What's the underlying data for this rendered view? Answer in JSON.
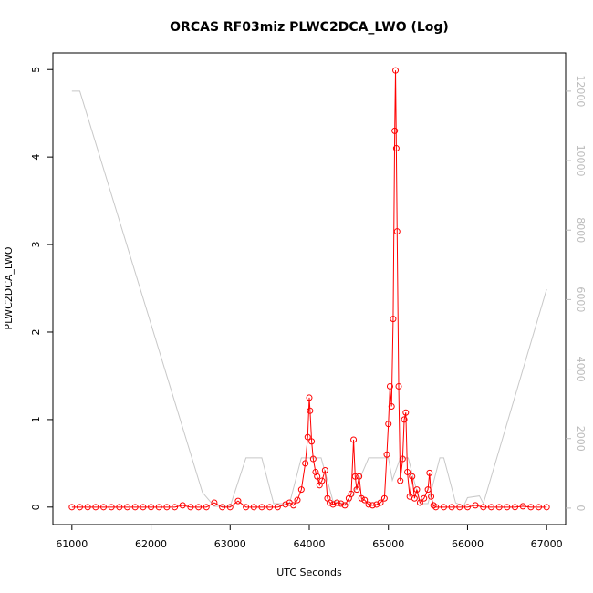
{
  "chart_data": {
    "type": "line",
    "title": "ORCAS RF03miz PLWC2DCA_LWO (Log)",
    "x_label": "UTC Seconds",
    "y_label": "PLWC2DCA_LWO",
    "xlim": [
      60760,
      67240
    ],
    "xticks": [
      61000,
      62000,
      63000,
      64000,
      65000,
      66000,
      67000
    ],
    "ylim": [
      -0.2,
      5.19
    ],
    "yticks": [
      0,
      1,
      2,
      3,
      4,
      5
    ],
    "y2lim": [
      -475,
      13100
    ],
    "y2ticks": [
      0,
      2000,
      4000,
      6000,
      8000,
      10000,
      12000
    ],
    "series": [
      {
        "color": "#c8c8c8",
        "axis": "y2",
        "x": [
          61000,
          61100,
          62650,
          62800,
          63000,
          63200,
          63400,
          63550,
          63750,
          63900,
          64150,
          64300,
          64500,
          64750,
          65000,
          65050,
          65150,
          65250,
          65400,
          65500,
          65650,
          65700,
          65850,
          65950,
          66000,
          66150,
          66200,
          67000
        ],
        "values": [
          12000,
          12000,
          450,
          50,
          50,
          1444,
          1444,
          130,
          130,
          1444,
          1444,
          200,
          100,
          1444,
          1444,
          800,
          1444,
          1444,
          130,
          130,
          1444,
          1444,
          150,
          50,
          300,
          350,
          130,
          6300
        ]
      },
      {
        "color": "#ff0000",
        "x": [
          61000,
          61100,
          61200,
          61300,
          61400,
          61500,
          61600,
          61700,
          61800,
          61900,
          62000,
          62100,
          62200,
          62300,
          62400,
          62500,
          62600,
          62700,
          62800,
          62900,
          63000,
          63100,
          63200,
          63300,
          63400,
          63500,
          63600,
          63700,
          63750,
          63800,
          63850,
          63900,
          63950,
          63980,
          64000,
          64010,
          64030,
          64050,
          64080,
          64100,
          64130,
          64160,
          64200,
          64230,
          64260,
          64300,
          64350,
          64400,
          64450,
          64500,
          64530,
          64560,
          64580,
          64600,
          64630,
          64660,
          64700,
          64750,
          64800,
          64850,
          64900,
          64950,
          64980,
          65000,
          65020,
          65040,
          65060,
          65080,
          65090,
          65100,
          65110,
          65130,
          65150,
          65180,
          65200,
          65220,
          65240,
          65270,
          65300,
          65330,
          65360,
          65400,
          65450,
          65500,
          65520,
          65540,
          65570,
          65600,
          65700,
          65800,
          65900,
          66000,
          66100,
          66200,
          66300,
          66400,
          66500,
          66600,
          66700,
          66800,
          66900,
          67000
        ],
        "values": [
          0,
          0,
          0,
          0,
          0,
          0,
          0,
          0,
          0,
          0,
          0,
          0,
          0,
          0,
          0.02,
          0,
          0,
          0,
          0.05,
          0,
          0,
          0.07,
          0,
          0,
          0,
          0,
          0,
          0.03,
          0.05,
          0.02,
          0.08,
          0.2,
          0.5,
          0.8,
          1.25,
          1.1,
          0.75,
          0.55,
          0.4,
          0.35,
          0.25,
          0.3,
          0.42,
          0.1,
          0.05,
          0.03,
          0.05,
          0.04,
          0.02,
          0.1,
          0.15,
          0.77,
          0.35,
          0.2,
          0.35,
          0.1,
          0.08,
          0.03,
          0.02,
          0.03,
          0.05,
          0.1,
          0.6,
          0.95,
          1.38,
          1.15,
          2.15,
          4.3,
          4.99,
          4.1,
          3.15,
          1.38,
          0.3,
          0.55,
          1.0,
          1.08,
          0.4,
          0.12,
          0.35,
          0.1,
          0.2,
          0.05,
          0.1,
          0.2,
          0.39,
          0.12,
          0.02,
          0,
          0,
          0,
          0,
          0,
          0.02,
          0,
          0,
          0,
          0,
          0,
          0.01,
          0,
          0,
          0
        ]
      }
    ]
  }
}
